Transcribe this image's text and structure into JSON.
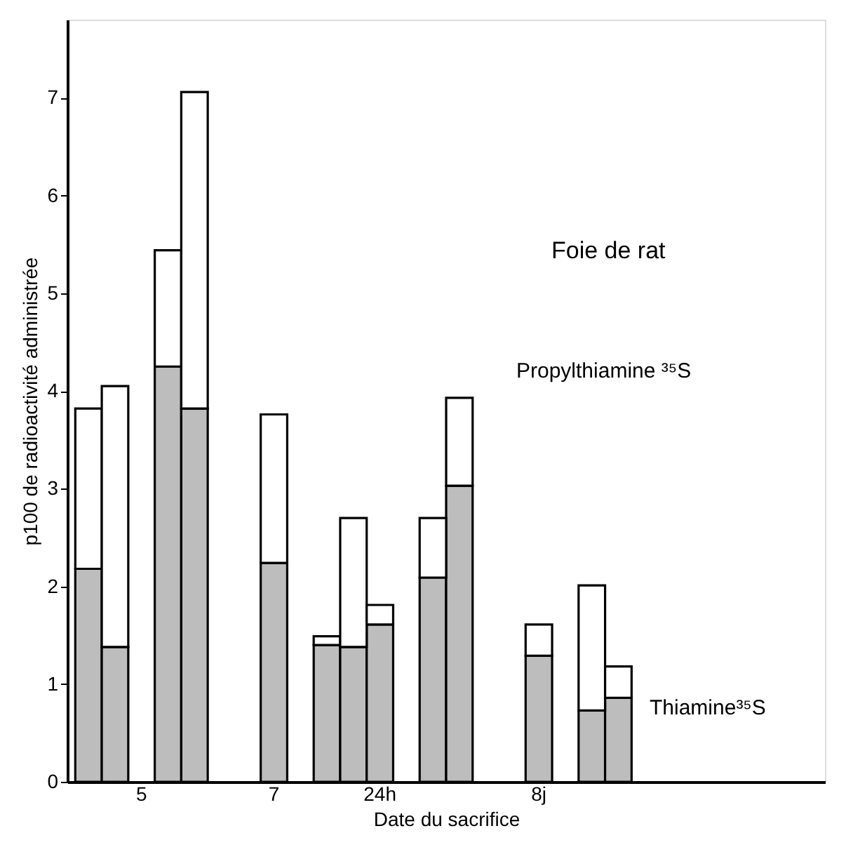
{
  "chart_data": {
    "type": "bar",
    "stacked": true,
    "title": "Foie de rat",
    "xlabel": "Date du sacrifice",
    "ylabel": "p100 de radioactivité administrée",
    "categories": [
      null,
      null,
      "5",
      null,
      null,
      null,
      null,
      "7",
      null,
      null,
      null,
      "24h",
      null,
      null,
      null,
      null,
      null,
      "8j",
      null,
      null,
      null,
      null,
      null,
      null,
      null,
      null,
      null,
      null
    ],
    "series": [
      {
        "name": "Thiamine³⁵S",
        "color": "#bdbdbd",
        "values": [
          2.18,
          1.38,
          null,
          4.25,
          3.82,
          null,
          null,
          2.24,
          null,
          1.4,
          1.38,
          1.61,
          null,
          2.09,
          3.03,
          null,
          null,
          1.29,
          null,
          0.73,
          0.86,
          null,
          null,
          null,
          null,
          null,
          null,
          null
        ]
      },
      {
        "name": "Propylthiamine ³⁵S",
        "color": "#ffffff",
        "values": [
          1.64,
          2.67,
          null,
          1.19,
          3.24,
          null,
          null,
          1.52,
          null,
          0.09,
          1.32,
          0.2,
          null,
          0.61,
          0.9,
          null,
          null,
          0.32,
          null,
          1.28,
          0.32,
          null,
          null,
          null,
          null,
          null,
          null,
          null
        ]
      }
    ],
    "ylim": [
      0,
      7.8
    ],
    "yticks": [
      0,
      1,
      2,
      3,
      4,
      5,
      6,
      7
    ],
    "grid": false,
    "legend": false
  }
}
